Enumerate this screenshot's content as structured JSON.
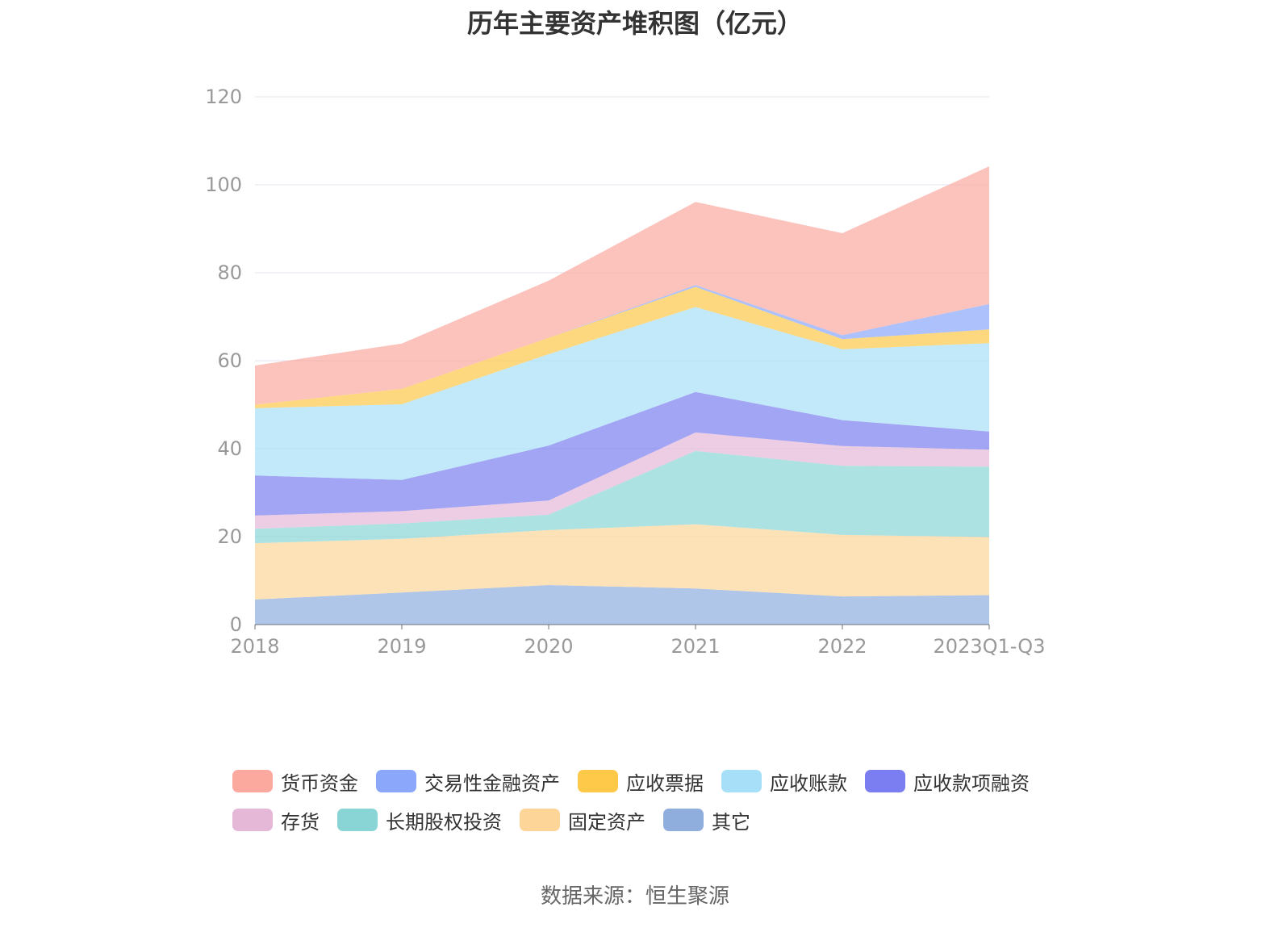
{
  "title": "历年主要资产堆积图（亿元）",
  "source": "数据来源：恒生聚源",
  "chart_data": {
    "type": "area",
    "stacked": true,
    "title": "历年主要资产堆积图（亿元）",
    "xlabel": "",
    "ylabel": "",
    "ylim": [
      0,
      120
    ],
    "yticks": [
      0,
      20,
      40,
      60,
      80,
      100,
      120
    ],
    "grid": true,
    "legend_position": "bottom",
    "categories": [
      "2018",
      "2019",
      "2020",
      "2021",
      "2022",
      "2023Q1-Q3"
    ],
    "series": [
      {
        "name": "其它",
        "color": "#8faede",
        "values": [
          5.7,
          7.3,
          9.0,
          8.2,
          6.4,
          6.7
        ]
      },
      {
        "name": "固定资产",
        "color": "#fdd599",
        "values": [
          12.8,
          12.2,
          12.5,
          14.6,
          14.0,
          13.2
        ]
      },
      {
        "name": "长期股权投资",
        "color": "#89d5d6",
        "values": [
          3.3,
          3.5,
          3.5,
          16.7,
          15.7,
          16.0
        ]
      },
      {
        "name": "存货",
        "color": "#e6b8d8",
        "values": [
          3.0,
          2.8,
          3.2,
          4.2,
          4.5,
          3.9
        ]
      },
      {
        "name": "应收款项融资",
        "color": "#7b7ef0",
        "values": [
          9.1,
          7.1,
          12.5,
          9.2,
          5.9,
          4.1
        ]
      },
      {
        "name": "应收账款",
        "color": "#a7dff8",
        "values": [
          15.3,
          17.2,
          20.8,
          19.3,
          16.1,
          20.1
        ]
      },
      {
        "name": "应收票据",
        "color": "#fec849",
        "values": [
          0.8,
          3.5,
          3.7,
          4.6,
          2.3,
          3.1
        ]
      },
      {
        "name": "交易性金融资产",
        "color": "#8aa7fc",
        "values": [
          0.0,
          0.0,
          0.0,
          0.4,
          0.9,
          5.8
        ]
      },
      {
        "name": "货币资金",
        "color": "#fba89f",
        "values": [
          8.9,
          10.3,
          13.0,
          18.9,
          23.2,
          31.3
        ]
      }
    ],
    "legend_order": [
      "货币资金",
      "交易性金融资产",
      "应收票据",
      "应收账款",
      "应收款项融资",
      "存货",
      "长期股权投资",
      "固定资产",
      "其它"
    ]
  }
}
